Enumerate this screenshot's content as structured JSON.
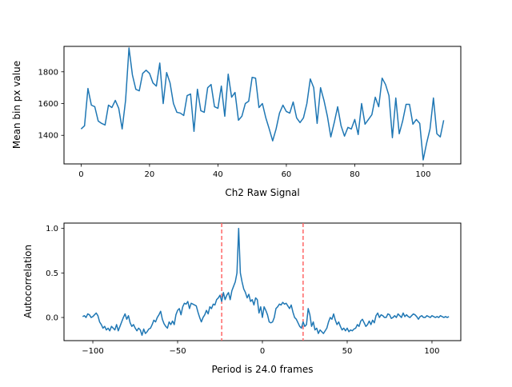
{
  "colors": {
    "line": "#1f77b4",
    "period_marker": "#ff6666",
    "axes": "#000000"
  },
  "chart_data": [
    {
      "type": "line",
      "xlabel": "Ch2 Raw Signal",
      "ylabel": "Mean bin px value",
      "xlim": [
        -5,
        111
      ],
      "ylim": [
        1220,
        1960
      ],
      "xticks": [
        0,
        20,
        40,
        60,
        80,
        100
      ],
      "yticks": [
        1400,
        1600,
        1800
      ],
      "x": [
        0,
        1,
        2,
        3,
        4,
        5,
        6,
        7,
        8,
        9,
        10,
        11,
        12,
        13,
        14,
        15,
        16,
        17,
        18,
        19,
        20,
        21,
        22,
        23,
        24,
        25,
        26,
        27,
        28,
        29,
        30,
        31,
        32,
        33,
        34,
        35,
        36,
        37,
        38,
        39,
        40,
        41,
        42,
        43,
        44,
        45,
        46,
        47,
        48,
        49,
        50,
        51,
        52,
        53,
        54,
        55,
        56,
        57,
        58,
        59,
        60,
        61,
        62,
        63,
        64,
        65,
        66,
        67,
        68,
        69,
        70,
        71,
        72,
        73,
        74,
        75,
        76,
        77,
        78,
        79,
        80,
        81,
        82,
        83,
        84,
        85,
        86,
        87,
        88,
        89,
        90,
        91,
        92,
        93,
        94,
        95,
        96,
        97,
        98,
        99,
        100,
        101,
        102,
        103,
        104,
        105,
        106
      ],
      "values": [
        1440,
        1460,
        1695,
        1590,
        1580,
        1490,
        1475,
        1465,
        1590,
        1575,
        1620,
        1570,
        1440,
        1620,
        1950,
        1780,
        1690,
        1680,
        1790,
        1810,
        1790,
        1730,
        1710,
        1855,
        1600,
        1795,
        1730,
        1600,
        1545,
        1540,
        1525,
        1650,
        1660,
        1425,
        1690,
        1555,
        1545,
        1700,
        1720,
        1580,
        1570,
        1710,
        1520,
        1785,
        1640,
        1670,
        1495,
        1520,
        1600,
        1615,
        1765,
        1760,
        1575,
        1600,
        1510,
        1440,
        1365,
        1440,
        1540,
        1590,
        1550,
        1540,
        1610,
        1510,
        1480,
        1510,
        1600,
        1755,
        1700,
        1475,
        1700,
        1620,
        1520,
        1390,
        1480,
        1580,
        1460,
        1395,
        1450,
        1440,
        1500,
        1405,
        1600,
        1470,
        1500,
        1530,
        1640,
        1580,
        1760,
        1720,
        1650,
        1385,
        1635,
        1410,
        1490,
        1595,
        1595,
        1470,
        1500,
        1475,
        1245,
        1350,
        1440,
        1635,
        1410,
        1390,
        1495
      ]
    },
    {
      "type": "line",
      "xlabel": "Period is 24.0 frames",
      "ylabel": "Autocorrelation",
      "xlim": [
        -117,
        117
      ],
      "ylim": [
        -0.26,
        1.06
      ],
      "xticks": [
        -100,
        -50,
        0,
        50,
        100
      ],
      "yticks": [
        0.0,
        0.5,
        1.0
      ],
      "vlines": [
        -24,
        24
      ],
      "x_start": -106,
      "x_step": 1,
      "values": [
        0.01,
        0.02,
        0.0,
        0.04,
        0.03,
        0.0,
        0.01,
        0.03,
        0.05,
        0.02,
        -0.05,
        -0.08,
        -0.12,
        -0.1,
        -0.14,
        -0.12,
        -0.15,
        -0.1,
        -0.12,
        -0.14,
        -0.08,
        -0.15,
        -0.1,
        -0.05,
        0.0,
        0.04,
        -0.02,
        0.02,
        -0.06,
        -0.1,
        -0.08,
        -0.12,
        -0.15,
        -0.12,
        -0.14,
        -0.2,
        -0.13,
        -0.18,
        -0.16,
        -0.13,
        -0.12,
        -0.08,
        -0.03,
        -0.05,
        0.0,
        0.03,
        0.07,
        -0.02,
        -0.07,
        -0.1,
        -0.12,
        -0.05,
        -0.08,
        -0.04,
        -0.08,
        0.03,
        0.08,
        0.1,
        0.03,
        0.12,
        0.16,
        0.15,
        0.18,
        0.1,
        0.16,
        0.15,
        0.14,
        0.13,
        0.06,
        0.0,
        -0.05,
        0.0,
        0.03,
        0.08,
        0.04,
        0.12,
        0.1,
        0.15,
        0.14,
        0.2,
        0.22,
        0.25,
        0.18,
        0.28,
        0.2,
        0.25,
        0.28,
        0.2,
        0.3,
        0.35,
        0.4,
        0.5,
        1.0,
        0.5,
        0.4,
        0.32,
        0.28,
        0.22,
        0.26,
        0.18,
        0.2,
        0.14,
        0.22,
        0.2,
        0.05,
        0.12,
        0.0,
        0.12,
        0.08,
        0.03,
        -0.05,
        -0.06,
        -0.05,
        0.0,
        0.1,
        0.12,
        0.15,
        0.14,
        0.17,
        0.15,
        0.16,
        0.13,
        0.1,
        0.14,
        0.06,
        0.0,
        -0.02,
        -0.06,
        -0.1,
        -0.12,
        -0.05,
        -0.1,
        -0.08,
        0.1,
        0.03,
        -0.1,
        -0.05,
        -0.14,
        -0.12,
        -0.18,
        -0.14,
        -0.16,
        -0.18,
        -0.15,
        -0.12,
        -0.05,
        0.0,
        -0.02,
        0.04,
        -0.03,
        -0.08,
        -0.05,
        -0.1,
        -0.14,
        -0.12,
        -0.15,
        -0.12,
        -0.16,
        -0.14,
        -0.15,
        -0.13,
        -0.12,
        -0.08,
        -0.1,
        -0.04,
        -0.02,
        -0.06,
        -0.1,
        -0.08,
        -0.04,
        -0.08,
        -0.03,
        -0.06,
        0.02,
        0.05,
        0.0,
        0.03,
        0.02,
        0.0,
        0.0,
        0.04,
        0.03,
        -0.01,
        0.0,
        0.02,
        0.0,
        0.04,
        0.02,
        0.0,
        0.05,
        0.01,
        0.03,
        0.01,
        0.0,
        0.02,
        0.04,
        0.03,
        0.01,
        -0.02,
        0.01,
        0.02,
        0.0,
        0.0,
        0.02,
        0.01,
        0.0,
        0.02,
        0.01,
        0.0,
        0.01,
        0.0,
        0.02,
        0.01,
        0.0,
        0.01,
        0.0,
        0.01
      ]
    }
  ]
}
